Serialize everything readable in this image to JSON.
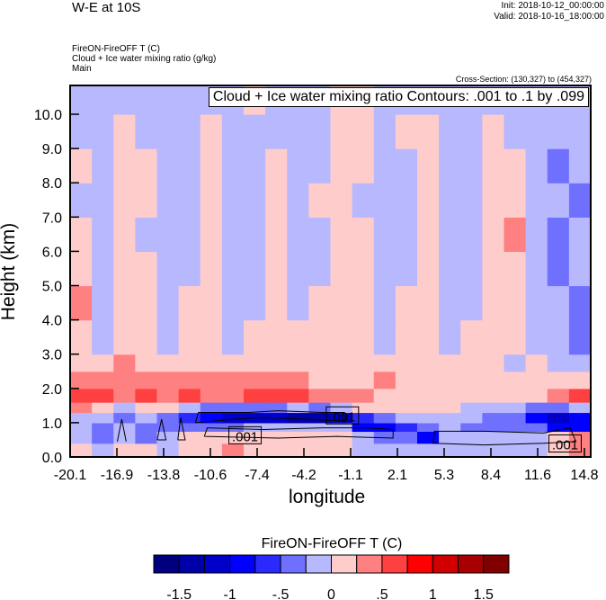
{
  "header": {
    "title": "W-E at 10S",
    "init": "Init: 2018-10-12_00:00:00",
    "valid": "Valid: 2018-10-16_18:00:00",
    "field1": "FireON-FireOFF T   (C)",
    "field2": "Cloud + Ice water mixing ratio   (g/kg)",
    "domain": "Main",
    "cross_section": "Cross-Section: (130,327) to (454,327)"
  },
  "chart_data": {
    "type": "heatmap",
    "title": "W-E at 10S",
    "xlabel": "longitude",
    "ylabel": "Height (km)",
    "xlim": [
      -20.1,
      15.2
    ],
    "ylim": [
      0,
      10.84
    ],
    "xticks": [
      "-20.1",
      "-16.9",
      "-13.8",
      "-10.6",
      "-7.4",
      "-4.2",
      "-1.1",
      "2.1",
      "5.3",
      "8.4",
      "11.6",
      "14.8"
    ],
    "yticks": [
      "0.0",
      "1.0",
      "2.0",
      "3.0",
      "4.0",
      "5.0",
      "6.0",
      "7.0",
      "8.0",
      "9.0",
      "10.0"
    ],
    "contour_title": "Cloud + Ice water mixing ratio Contours: .001 to .1 by .099",
    "colorbar": {
      "title": "FireON-FireOFF T  (C)",
      "boundaries": [
        -1.5,
        -1.25,
        -1,
        -0.75,
        -0.5,
        -0.25,
        0,
        0.25,
        0.5,
        0.75,
        1,
        1.25,
        1.5
      ],
      "labels": [
        "-1.5",
        "-1",
        "-.5",
        "0",
        ".5",
        "1",
        "1.5"
      ],
      "colors": [
        "#00007f",
        "#0000a8",
        "#0000c8",
        "#0000ff",
        "#2a2aff",
        "#7070ff",
        "#b8b8ff",
        "#ffcccc",
        "#ff8080",
        "#ff4040",
        "#ff0000",
        "#d00000",
        "#a80000",
        "#800000"
      ]
    },
    "row_bounds_km": [
      0,
      0.4,
      0.75,
      1.0,
      1.3,
      1.6,
      2.0,
      2.5,
      3.0,
      4,
      5,
      6,
      7,
      8,
      9,
      10,
      10.84
    ],
    "grid": [
      [
        0.1,
        -0.1,
        0.1,
        0.1,
        -0.1,
        0.1,
        0.2,
        0.3,
        0.1,
        0.2,
        0.1,
        0.1,
        0.1,
        -0.1,
        -0.1,
        -0.1,
        -0.1,
        -0.1,
        -0.1,
        -0.1,
        -0.1,
        -0.1,
        0.2,
        0.4
      ],
      [
        -0.2,
        -0.4,
        -0.2,
        -0.3,
        -0.1,
        0.1,
        0.1,
        0.1,
        0.1,
        0.1,
        0.1,
        0.1,
        0.1,
        -0.1,
        -0.3,
        -0.4,
        -0.8,
        -0.1,
        -0.1,
        -0.1,
        -0.1,
        -0.1,
        0.1,
        0.3
      ],
      [
        -0.1,
        -0.3,
        -0.2,
        -0.4,
        -0.3,
        -0.4,
        -0.3,
        -0.3,
        -0.2,
        -0.1,
        -0.1,
        -0.1,
        -0.2,
        -0.8,
        -0.9,
        -0.6,
        -0.3,
        -0.2,
        -0.3,
        -0.3,
        -0.4,
        -0.5,
        -0.9,
        -0.8
      ],
      [
        -0.2,
        -0.1,
        -0.3,
        -0.2,
        -0.5,
        -0.7,
        -0.9,
        -1.1,
        -1.2,
        -1.2,
        -1.3,
        -1.3,
        -1.1,
        -0.6,
        -0.3,
        -0.2,
        -0.1,
        -0.1,
        -0.2,
        -0.3,
        -0.4,
        -0.8,
        -1.1,
        -0.9
      ],
      [
        0.3,
        0.2,
        -0.1,
        0.2,
        0.1,
        -0.2,
        -0.4,
        -0.3,
        -0.4,
        -0.3,
        -0.2,
        -0.3,
        -0.2,
        0.1,
        0.1,
        0.1,
        0.1,
        0.1,
        -0.1,
        -0.1,
        -0.1,
        -0.4,
        -0.5,
        -0.2
      ],
      [
        0.5,
        0.6,
        0.4,
        0.5,
        0.4,
        0.5,
        0.4,
        0.4,
        0.6,
        0.6,
        0.5,
        0.3,
        0.3,
        0.3,
        0.2,
        0.1,
        0.1,
        0.1,
        0.1,
        0.1,
        0.1,
        0.1,
        0.3,
        0.5
      ],
      [
        0.3,
        0.3,
        0.4,
        0.3,
        0.3,
        0.4,
        0.3,
        0.3,
        0.3,
        0.3,
        0.3,
        0.2,
        0.1,
        0.1,
        0.3,
        0.1,
        0.1,
        0.2,
        0.1,
        0.1,
        0.1,
        0.2,
        0.1,
        0.1
      ],
      [
        0.1,
        0.1,
        0.3,
        0.1,
        0.2,
        0.1,
        0.1,
        0.1,
        0.1,
        0.1,
        0.1,
        0.1,
        0.1,
        0.1,
        0.1,
        0.1,
        0.1,
        0.1,
        0.1,
        0.1,
        -0.1,
        0.1,
        -0.1,
        -0.1
      ],
      [
        0.1,
        -0.1,
        0.1,
        0.1,
        -0.1,
        0.1,
        0.1,
        -0.1,
        0.1,
        0.1,
        0.1,
        0.1,
        0.1,
        0.1,
        -0.1,
        0.1,
        0.1,
        -0.1,
        0.1,
        0.1,
        0.1,
        -0.1,
        -0.1,
        -0.3
      ],
      [
        0.3,
        -0.1,
        0.1,
        0.1,
        -0.1,
        0.1,
        0.1,
        -0.1,
        -0.1,
        0.1,
        -0.1,
        0.1,
        0.1,
        0.1,
        -0.1,
        0.1,
        0.1,
        -0.1,
        -0.1,
        0.1,
        0.1,
        -0.1,
        -0.1,
        -0.3
      ],
      [
        0.1,
        -0.1,
        0.1,
        0.1,
        -0.1,
        -0.1,
        0.1,
        -0.1,
        -0.1,
        0.1,
        -0.1,
        -0.1,
        0.1,
        0.1,
        -0.1,
        -0.1,
        0.1,
        -0.1,
        -0.1,
        0.1,
        0.1,
        -0.1,
        -0.3,
        -0.1
      ],
      [
        0.1,
        -0.1,
        0.1,
        -0.1,
        -0.1,
        -0.1,
        0.1,
        -0.1,
        -0.1,
        0.1,
        -0.1,
        -0.1,
        0.1,
        0.1,
        -0.1,
        -0.1,
        0.1,
        -0.1,
        -0.1,
        0.1,
        0.3,
        -0.1,
        -0.3,
        -0.1
      ],
      [
        -0.1,
        -0.1,
        0.1,
        0.1,
        -0.1,
        -0.1,
        0.1,
        -0.1,
        -0.1,
        0.1,
        -0.1,
        0.1,
        0.1,
        -0.1,
        -0.1,
        -0.1,
        0.1,
        -0.1,
        -0.1,
        0.1,
        0.1,
        -0.1,
        -0.1,
        -0.3
      ],
      [
        0.1,
        -0.1,
        0.1,
        0.1,
        -0.1,
        -0.1,
        0.1,
        -0.1,
        -0.1,
        0.1,
        -0.1,
        -0.1,
        0.1,
        0.1,
        -0.1,
        -0.1,
        0.1,
        -0.1,
        -0.1,
        0.1,
        0.1,
        -0.1,
        -0.3,
        -0.1
      ],
      [
        -0.1,
        -0.1,
        0.1,
        -0.1,
        -0.1,
        -0.1,
        0.1,
        -0.1,
        -0.1,
        -0.1,
        -0.1,
        -0.1,
        0.1,
        0.1,
        -0.1,
        0.1,
        0.1,
        -0.1,
        -0.1,
        0.1,
        -0.1,
        -0.1,
        -0.1,
        -0.1
      ],
      [
        -0.1,
        -0.1,
        -0.1,
        -0.1,
        -0.1,
        -0.1,
        -0.1,
        -0.1,
        0.1,
        -0.1,
        -0.1,
        -0.1,
        0.1,
        0.1,
        -0.1,
        -0.1,
        -0.1,
        -0.1,
        -0.1,
        -0.1,
        -0.1,
        -0.1,
        -0.1,
        -0.1
      ]
    ],
    "contours": [
      {
        "level": ".001",
        "points": [
          [
            -11.6,
            1.0
          ],
          [
            -11.4,
            1.3
          ],
          [
            -8,
            1.3
          ],
          [
            -6,
            1.35
          ],
          [
            -3,
            1.3
          ],
          [
            -1.5,
            1.3
          ],
          [
            -1.5,
            1.05
          ],
          [
            -4,
            1.1
          ],
          [
            -7,
            1.15
          ],
          [
            -9,
            1.1
          ],
          [
            -11.6,
            1.0
          ]
        ]
      },
      {
        "level": ".001",
        "points": [
          [
            -11,
            0.6
          ],
          [
            -10.8,
            0.85
          ],
          [
            -7,
            0.8
          ],
          [
            -3,
            0.85
          ],
          [
            0,
            0.85
          ],
          [
            1.8,
            0.8
          ],
          [
            1.8,
            0.55
          ],
          [
            -2,
            0.6
          ],
          [
            -6,
            0.55
          ],
          [
            -11,
            0.6
          ]
        ]
      },
      {
        "level": ".001",
        "points": [
          [
            4.5,
            0.4
          ],
          [
            4.6,
            0.75
          ],
          [
            8,
            0.75
          ],
          [
            12,
            0.7
          ],
          [
            13.8,
            0.85
          ],
          [
            14.2,
            0.45
          ],
          [
            12,
            0.4
          ],
          [
            8,
            0.35
          ],
          [
            4.5,
            0.4
          ]
        ]
      },
      {
        "level": ".001",
        "points": [
          [
            -16.9,
            0.45
          ],
          [
            -16.6,
            1.1
          ],
          [
            -16.3,
            0.45
          ]
        ]
      },
      {
        "level": ".001",
        "points": [
          [
            -14.2,
            0.5
          ],
          [
            -13.9,
            1.1
          ],
          [
            -13.6,
            0.5
          ],
          [
            -14.2,
            0.5
          ]
        ]
      },
      {
        "level": ".001",
        "points": [
          [
            -12.8,
            0.5
          ],
          [
            -12.6,
            1.15
          ],
          [
            -12.3,
            0.5
          ],
          [
            -12.8,
            0.5
          ]
        ]
      }
    ],
    "contour_labels": [
      {
        "text": ".001",
        "lon": -1.7,
        "h": 1.2
      },
      {
        "text": ".001",
        "lon": -8.3,
        "h": 0.62
      },
      {
        "text": ".001",
        "lon": 13.4,
        "h": 0.38
      }
    ]
  }
}
